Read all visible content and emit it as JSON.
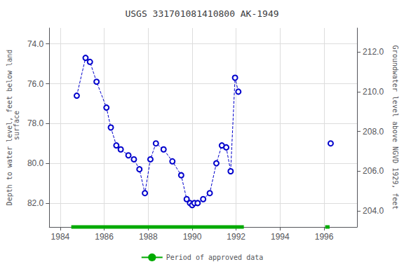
{
  "chart_data": {
    "type": "line",
    "title": "USGS 331701081410800 AK-1949",
    "ylabel": "Depth to water level, feet below land\n surface",
    "y2label": "Groundwater level above NGVD 1929, feet",
    "xlim": [
      1983.5,
      1997.5
    ],
    "xticks": [
      1984,
      1986,
      1988,
      1990,
      1992,
      1994,
      1996
    ],
    "ylim": [
      83.2,
      73.2
    ],
    "yticks": [
      {
        "value": 74.0,
        "label": "74.0"
      },
      {
        "value": 76.0,
        "label": "76.0"
      },
      {
        "value": 78.0,
        "label": "78.0"
      },
      {
        "value": 80.0,
        "label": "80.0"
      },
      {
        "value": 82.0,
        "label": "82.0"
      }
    ],
    "y2lim": [
      203.2,
      213.2
    ],
    "y2ticks": [
      {
        "value": 204.0,
        "label": "204.0"
      },
      {
        "value": 206.0,
        "label": "206.0"
      },
      {
        "value": 208.0,
        "label": "208.0"
      },
      {
        "value": 210.0,
        "label": "210.0"
      },
      {
        "value": 212.0,
        "label": "212.0"
      }
    ],
    "grid": true,
    "series": [
      {
        "color": "#0000CC",
        "line_style": "dashed",
        "marker": "circle",
        "x": [
          1984.75,
          1985.15,
          1985.35,
          1985.65,
          1986.1,
          1986.3,
          1986.55,
          1986.75,
          1987.1,
          1987.35,
          1987.6,
          1987.85,
          1988.1,
          1988.35,
          1988.7,
          1989.1,
          1989.5,
          1989.75,
          1989.9,
          1990.0,
          1990.1,
          1990.25,
          1990.5,
          1990.8,
          1991.1,
          1991.35,
          1991.55,
          1991.75,
          1991.95,
          1992.1
        ],
        "values": [
          76.6,
          74.7,
          74.9,
          75.9,
          77.2,
          78.2,
          79.1,
          79.3,
          79.6,
          79.8,
          80.3,
          81.5,
          79.8,
          79.0,
          79.3,
          79.9,
          80.6,
          81.8,
          82.0,
          82.1,
          82.0,
          82.0,
          81.8,
          81.5,
          80.0,
          79.1,
          79.2,
          80.4,
          75.7,
          76.4
        ]
      },
      {
        "color": "#0000CC",
        "line_style": "dashed",
        "marker": "circle",
        "x": [
          1996.3
        ],
        "values": [
          79.0
        ]
      }
    ],
    "approved_periods": {
      "label": "Period of approved data",
      "color": "#00AA00",
      "ranges": [
        [
          1984.5,
          1992.35
        ],
        [
          1996.05,
          1996.25
        ]
      ]
    },
    "legend": "bottom"
  }
}
